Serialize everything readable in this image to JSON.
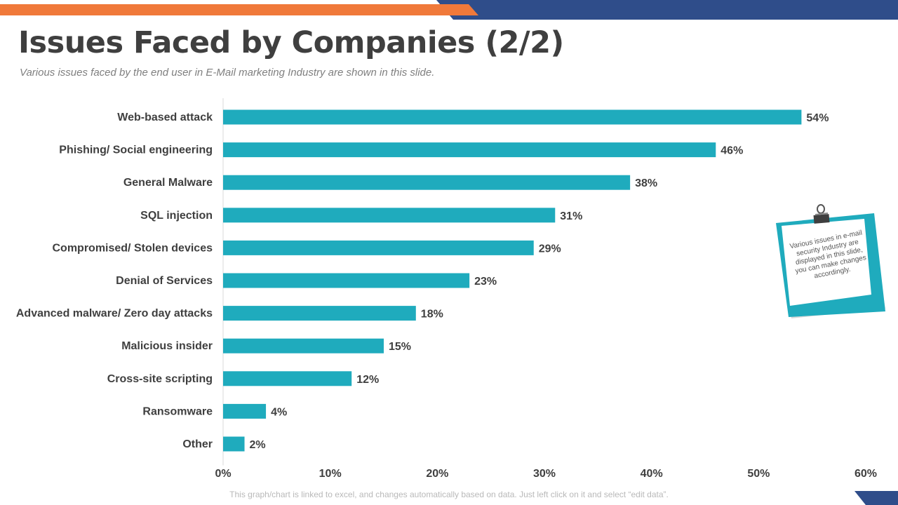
{
  "header": {
    "title": "Issues Faced by Companies (2/2)",
    "subtitle": "Various issues faced by the end user in E-Mail marketing Industry are shown  in this slide."
  },
  "note": {
    "text": "Various issues in e-mail security Industry are displayed in this slide, you can make changes accordingly."
  },
  "footer": {
    "text": "This graph/chart is linked to excel, and changes automatically based on data. Just left click on it and select “edit data”."
  },
  "colors": {
    "bar": "#1fabbd",
    "accent_orange": "#f0793a",
    "accent_navy": "#2f4d8a",
    "text_dark": "#3f3f3f",
    "axis": "#d9d9d9"
  },
  "chart_data": {
    "type": "bar",
    "orientation": "horizontal",
    "title": "",
    "xlabel": "",
    "ylabel": "",
    "xlim": [
      0,
      60
    ],
    "grid": false,
    "categories": [
      "Web-based attack",
      "Phishing/ Social engineering",
      "General Malware",
      "SQL injection",
      "Compromised/ Stolen devices",
      "Denial of Services",
      "Advanced malware/ Zero day attacks",
      "Malicious insider",
      "Cross-site scripting",
      "Ransomware",
      "Other"
    ],
    "values": [
      54,
      46,
      38,
      31,
      29,
      23,
      18,
      15,
      12,
      4,
      2
    ],
    "data_labels": [
      "54%",
      "46%",
      "38%",
      "31%",
      "29%",
      "23%",
      "18%",
      "15%",
      "12%",
      "4%",
      "2%"
    ],
    "x_ticks": [
      0,
      10,
      20,
      30,
      40,
      50,
      60
    ],
    "x_tick_labels": [
      "0%",
      "10%",
      "20%",
      "30%",
      "40%",
      "50%",
      "60%"
    ]
  }
}
